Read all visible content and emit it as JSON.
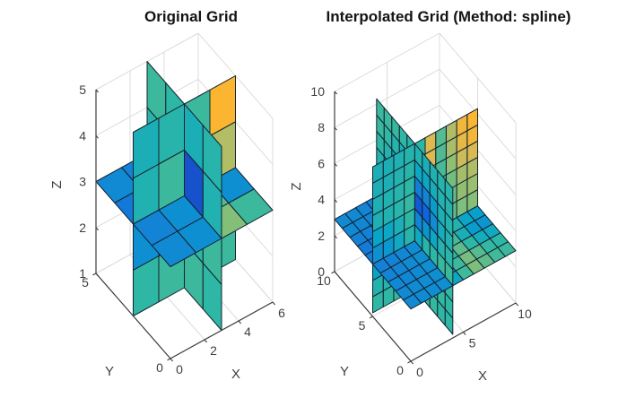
{
  "figure": {
    "background": "#ffffff"
  },
  "chart_data": {
    "type": "slice-3d-surface",
    "colormap": "parula",
    "parula_stops": [
      [
        0.0,
        "#352a87"
      ],
      [
        0.125,
        "#0f5cdd"
      ],
      [
        0.25,
        "#1481d6"
      ],
      [
        0.375,
        "#06a4ca"
      ],
      [
        0.5,
        "#2eb7a4"
      ],
      [
        0.625,
        "#87bf77"
      ],
      [
        0.75,
        "#d1bb59"
      ],
      [
        0.875,
        "#fdb52e"
      ],
      [
        1.0,
        "#f9fb0e"
      ]
    ],
    "plots": [
      {
        "id": "original",
        "title": "Original Grid",
        "axis_labels": {
          "x": "X",
          "y": "Y",
          "z": "Z"
        },
        "ranges": {
          "x": [
            0,
            6
          ],
          "y": [
            0,
            5
          ],
          "z": [
            1,
            5
          ]
        },
        "ticks": {
          "x": [
            0,
            2,
            4,
            6
          ],
          "y": [
            0,
            5
          ],
          "z": [
            1,
            2,
            3,
            4,
            5
          ]
        },
        "slices": {
          "x": 3,
          "y": 2.5,
          "z": 3
        },
        "vertical_z_extent": [
          1,
          5
        ],
        "cells": {
          "x": 4,
          "y": 4,
          "z": 4
        }
      },
      {
        "id": "interpolated",
        "title": "Interpolated Grid (Method: spline)",
        "axis_labels": {
          "x": "X",
          "y": "Y",
          "z": "Z"
        },
        "ranges": {
          "x": [
            0,
            10
          ],
          "y": [
            0,
            10
          ],
          "z": [
            0,
            10
          ]
        },
        "ticks": {
          "x": [
            0,
            5,
            10
          ],
          "y": [
            0,
            5,
            10
          ],
          "z": [
            0,
            2,
            4,
            6,
            8,
            10
          ]
        },
        "slices": {
          "x": 4,
          "y": 5,
          "z": 2.9
        },
        "vertical_z_extent": [
          0.2,
          8.3
        ],
        "cells": {
          "x": 10,
          "y": 10,
          "z": 9
        },
        "highlight_ridge": {
          "axis": "x",
          "center": 5.4,
          "half_width": 0.45,
          "value": 0.78
        }
      }
    ],
    "field": {
      "yz_slice": [
        [
          0.5,
          0.52,
          0.3,
          0.26
        ],
        [
          0.52,
          0.5,
          0.24,
          0.3
        ],
        [
          0.46,
          0.1,
          0.08,
          0.48
        ],
        [
          0.48,
          0.44,
          0.5,
          0.52
        ]
      ],
      "xz_slice": [
        [
          0.5,
          0.52,
          0.48,
          0.52
        ],
        [
          0.3,
          0.5,
          0.52,
          0.62
        ],
        [
          0.46,
          0.52,
          0.5,
          0.7
        ],
        [
          0.44,
          0.48,
          0.52,
          0.87
        ]
      ],
      "xy_slice": [
        [
          0.28,
          0.3,
          0.62,
          0.52
        ],
        [
          0.26,
          0.3,
          0.55,
          0.3
        ],
        [
          0.22,
          0.28,
          0.62,
          0.52
        ],
        [
          0.28,
          0.25,
          0.52,
          0.3
        ]
      ]
    },
    "style": {
      "edge": "#14222d",
      "axis_line": "#3c3c3c",
      "grid_line": "#dcdcdc",
      "tick_text": "#3f3f3f",
      "title_color": "#141414",
      "background": "#ffffff"
    }
  }
}
